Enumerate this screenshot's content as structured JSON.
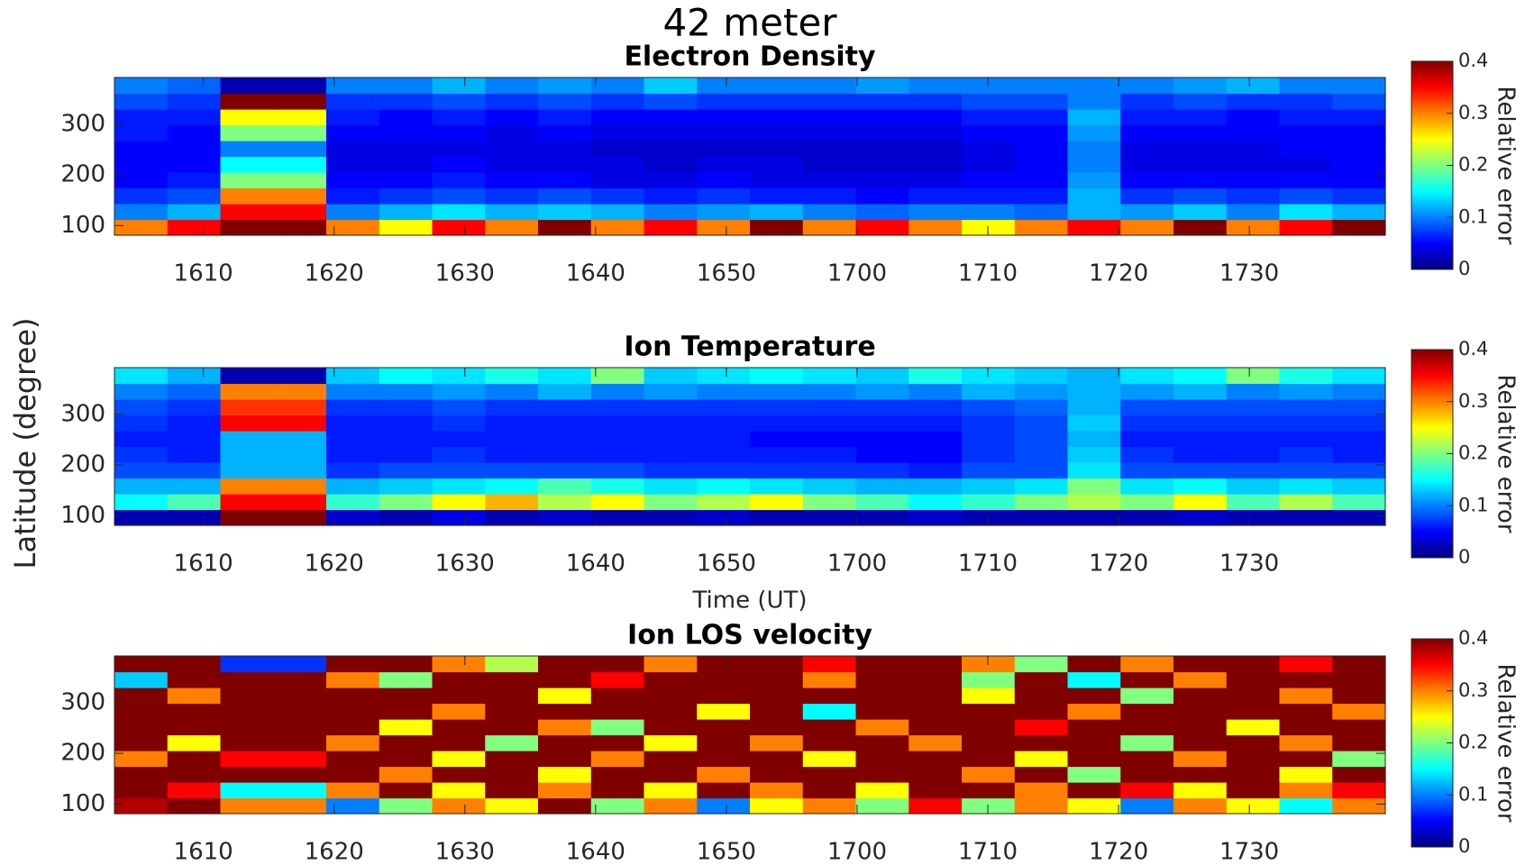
{
  "title": "42 meter",
  "ylabel": "Latitude (degree)",
  "chart_data": [
    {
      "type": "heatmap",
      "title": "Electron Density",
      "colormap": "jet",
      "xlim": [
        963.2,
        1060.4
      ],
      "xticks": [
        {
          "value": 970,
          "label": "1610"
        },
        {
          "value": 980,
          "label": "1620"
        },
        {
          "value": 990,
          "label": "1630"
        },
        {
          "value": 1000,
          "label": "1640"
        },
        {
          "value": 1010,
          "label": "1650"
        },
        {
          "value": 1020,
          "label": "1700"
        },
        {
          "value": 1030,
          "label": "1710"
        },
        {
          "value": 1040,
          "label": "1720"
        },
        {
          "value": 1050,
          "label": "1730"
        }
      ],
      "ylim": [
        81,
        392
      ],
      "yticks": [
        100,
        200,
        300
      ],
      "clim": [
        0,
        0.4
      ],
      "cticks": [
        0,
        0.1,
        0.2,
        0.3,
        0.4
      ],
      "colorbar_label": "Relative error",
      "z": [
        [
          0.3,
          0.35,
          0.4,
          0.4,
          0.3,
          0.25,
          0.35,
          0.3,
          0.4,
          0.3,
          0.35,
          0.3,
          0.4,
          0.3,
          0.35,
          0.3,
          0.25,
          0.3,
          0.35,
          0.3,
          0.4,
          0.3,
          0.35,
          0.4
        ],
        [
          0.1,
          0.12,
          0.35,
          0.35,
          0.1,
          0.12,
          0.14,
          0.12,
          0.13,
          0.12,
          0.1,
          0.11,
          0.12,
          0.1,
          0.09,
          0.1,
          0.1,
          0.09,
          0.12,
          0.11,
          0.13,
          0.1,
          0.14,
          0.12
        ],
        [
          0.07,
          0.08,
          0.3,
          0.3,
          0.06,
          0.07,
          0.08,
          0.07,
          0.08,
          0.07,
          0.06,
          0.07,
          0.06,
          0.06,
          0.05,
          0.06,
          0.06,
          0.06,
          0.12,
          0.07,
          0.08,
          0.07,
          0.08,
          0.07
        ],
        [
          0.05,
          0.06,
          0.2,
          0.2,
          0.05,
          0.05,
          0.06,
          0.05,
          0.05,
          0.04,
          0.04,
          0.05,
          0.04,
          0.04,
          0.04,
          0.04,
          0.05,
          0.05,
          0.11,
          0.05,
          0.05,
          0.05,
          0.05,
          0.05
        ],
        [
          0.05,
          0.05,
          0.15,
          0.15,
          0.04,
          0.04,
          0.05,
          0.04,
          0.04,
          0.04,
          0.03,
          0.04,
          0.04,
          0.03,
          0.03,
          0.03,
          0.04,
          0.05,
          0.1,
          0.04,
          0.04,
          0.04,
          0.04,
          0.05
        ],
        [
          0.05,
          0.05,
          0.1,
          0.1,
          0.04,
          0.04,
          0.04,
          0.04,
          0.04,
          0.03,
          0.03,
          0.03,
          0.03,
          0.03,
          0.03,
          0.03,
          0.04,
          0.05,
          0.1,
          0.04,
          0.04,
          0.04,
          0.05,
          0.05
        ],
        [
          0.06,
          0.05,
          0.2,
          0.2,
          0.05,
          0.05,
          0.05,
          0.04,
          0.05,
          0.04,
          0.04,
          0.04,
          0.04,
          0.04,
          0.04,
          0.04,
          0.05,
          0.05,
          0.11,
          0.05,
          0.05,
          0.05,
          0.05,
          0.05
        ],
        [
          0.06,
          0.06,
          0.25,
          0.25,
          0.06,
          0.05,
          0.06,
          0.05,
          0.06,
          0.05,
          0.05,
          0.05,
          0.05,
          0.05,
          0.05,
          0.05,
          0.06,
          0.06,
          0.12,
          0.06,
          0.06,
          0.05,
          0.06,
          0.06
        ],
        [
          0.08,
          0.07,
          0.4,
          0.4,
          0.07,
          0.07,
          0.08,
          0.07,
          0.08,
          0.07,
          0.08,
          0.07,
          0.07,
          0.07,
          0.07,
          0.07,
          0.08,
          0.08,
          0.1,
          0.07,
          0.08,
          0.07,
          0.07,
          0.08
        ],
        [
          0.1,
          0.09,
          0.02,
          0.02,
          0.1,
          0.1,
          0.12,
          0.1,
          0.11,
          0.1,
          0.13,
          0.1,
          0.1,
          0.1,
          0.11,
          0.1,
          0.1,
          0.1,
          0.1,
          0.1,
          0.11,
          0.12,
          0.1,
          0.1
        ]
      ]
    },
    {
      "type": "heatmap",
      "title": "Ion Temperature",
      "xlabel": "Time (UT)",
      "colormap": "jet",
      "xlim": [
        963.2,
        1060.4
      ],
      "xticks": [
        {
          "value": 970,
          "label": "1610"
        },
        {
          "value": 980,
          "label": "1620"
        },
        {
          "value": 990,
          "label": "1630"
        },
        {
          "value": 1000,
          "label": "1640"
        },
        {
          "value": 1010,
          "label": "1650"
        },
        {
          "value": 1020,
          "label": "1700"
        },
        {
          "value": 1030,
          "label": "1710"
        },
        {
          "value": 1040,
          "label": "1720"
        },
        {
          "value": 1050,
          "label": "1730"
        }
      ],
      "ylim": [
        81,
        392
      ],
      "yticks": [
        100,
        200,
        300
      ],
      "clim": [
        0,
        0.4
      ],
      "cticks": [
        0,
        0.1,
        0.2,
        0.3,
        0.4
      ],
      "colorbar_label": "Relative error",
      "z": [
        [
          0.02,
          0.02,
          0.4,
          0.4,
          0.03,
          0.02,
          0.04,
          0.02,
          0.03,
          0.02,
          0.02,
          0.03,
          0.02,
          0.02,
          0.02,
          0.03,
          0.02,
          0.02,
          0.02,
          0.02,
          0.03,
          0.02,
          0.02,
          0.02
        ],
        [
          0.15,
          0.18,
          0.35,
          0.35,
          0.17,
          0.2,
          0.25,
          0.28,
          0.22,
          0.25,
          0.2,
          0.22,
          0.25,
          0.2,
          0.18,
          0.15,
          0.17,
          0.2,
          0.22,
          0.2,
          0.25,
          0.18,
          0.22,
          0.18
        ],
        [
          0.12,
          0.12,
          0.3,
          0.3,
          0.12,
          0.13,
          0.14,
          0.15,
          0.18,
          0.16,
          0.14,
          0.15,
          0.14,
          0.13,
          0.12,
          0.12,
          0.13,
          0.14,
          0.2,
          0.14,
          0.15,
          0.13,
          0.14,
          0.13
        ],
        [
          0.08,
          0.08,
          0.12,
          0.12,
          0.07,
          0.08,
          0.08,
          0.08,
          0.08,
          0.08,
          0.07,
          0.07,
          0.07,
          0.07,
          0.07,
          0.06,
          0.08,
          0.08,
          0.14,
          0.08,
          0.08,
          0.08,
          0.08,
          0.08
        ],
        [
          0.07,
          0.06,
          0.12,
          0.12,
          0.06,
          0.06,
          0.07,
          0.06,
          0.06,
          0.06,
          0.06,
          0.06,
          0.06,
          0.06,
          0.05,
          0.05,
          0.07,
          0.08,
          0.13,
          0.07,
          0.06,
          0.06,
          0.07,
          0.06
        ],
        [
          0.06,
          0.06,
          0.12,
          0.12,
          0.06,
          0.06,
          0.06,
          0.06,
          0.06,
          0.06,
          0.06,
          0.06,
          0.05,
          0.05,
          0.05,
          0.05,
          0.07,
          0.08,
          0.12,
          0.06,
          0.06,
          0.06,
          0.06,
          0.06
        ],
        [
          0.07,
          0.06,
          0.35,
          0.35,
          0.06,
          0.06,
          0.07,
          0.06,
          0.06,
          0.06,
          0.06,
          0.06,
          0.06,
          0.06,
          0.06,
          0.06,
          0.07,
          0.08,
          0.13,
          0.07,
          0.07,
          0.07,
          0.07,
          0.07
        ],
        [
          0.08,
          0.07,
          0.33,
          0.33,
          0.07,
          0.07,
          0.08,
          0.07,
          0.07,
          0.07,
          0.07,
          0.07,
          0.07,
          0.07,
          0.07,
          0.07,
          0.08,
          0.09,
          0.12,
          0.08,
          0.08,
          0.08,
          0.08,
          0.08
        ],
        [
          0.1,
          0.09,
          0.3,
          0.3,
          0.1,
          0.1,
          0.11,
          0.1,
          0.12,
          0.1,
          0.11,
          0.1,
          0.1,
          0.1,
          0.11,
          0.1,
          0.12,
          0.11,
          0.12,
          0.11,
          0.12,
          0.1,
          0.11,
          0.1
        ],
        [
          0.14,
          0.12,
          0.02,
          0.02,
          0.13,
          0.15,
          0.14,
          0.16,
          0.14,
          0.2,
          0.13,
          0.14,
          0.15,
          0.14,
          0.13,
          0.16,
          0.14,
          0.13,
          0.12,
          0.14,
          0.15,
          0.2,
          0.16,
          0.14
        ]
      ]
    },
    {
      "type": "heatmap",
      "title": "Ion LOS velocity",
      "colormap": "jet",
      "xlim": [
        963.2,
        1060.4
      ],
      "xticks": [
        {
          "value": 970,
          "label": "1610"
        },
        {
          "value": 980,
          "label": "1620"
        },
        {
          "value": 990,
          "label": "1630"
        },
        {
          "value": 1000,
          "label": "1640"
        },
        {
          "value": 1010,
          "label": "1650"
        },
        {
          "value": 1020,
          "label": "1700"
        },
        {
          "value": 1030,
          "label": "1710"
        },
        {
          "value": 1040,
          "label": "1720"
        },
        {
          "value": 1050,
          "label": "1730"
        }
      ],
      "ylim": [
        81,
        392
      ],
      "yticks": [
        100,
        200,
        300
      ],
      "clim": [
        0,
        0.4
      ],
      "cticks": [
        0,
        0.1,
        0.2,
        0.3,
        0.4
      ],
      "colorbar_label": "Relative error",
      "z": [
        [
          0.38,
          0.4,
          0.3,
          0.3,
          0.1,
          0.2,
          0.3,
          0.25,
          0.4,
          0.2,
          0.3,
          0.1,
          0.25,
          0.3,
          0.2,
          0.35,
          0.2,
          0.3,
          0.25,
          0.1,
          0.3,
          0.25,
          0.15,
          0.3
        ],
        [
          0.4,
          0.35,
          0.15,
          0.15,
          0.3,
          0.4,
          0.25,
          0.4,
          0.3,
          0.4,
          0.25,
          0.4,
          0.3,
          0.4,
          0.25,
          0.4,
          0.4,
          0.3,
          0.4,
          0.35,
          0.25,
          0.4,
          0.3,
          0.35
        ],
        [
          0.4,
          0.4,
          0.4,
          0.4,
          0.4,
          0.3,
          0.4,
          0.4,
          0.25,
          0.4,
          0.4,
          0.3,
          0.4,
          0.4,
          0.4,
          0.4,
          0.3,
          0.4,
          0.2,
          0.4,
          0.4,
          0.4,
          0.25,
          0.4
        ],
        [
          0.3,
          0.4,
          0.35,
          0.35,
          0.4,
          0.4,
          0.25,
          0.4,
          0.4,
          0.3,
          0.4,
          0.4,
          0.4,
          0.25,
          0.4,
          0.4,
          0.4,
          0.25,
          0.4,
          0.4,
          0.3,
          0.4,
          0.4,
          0.2
        ],
        [
          0.4,
          0.25,
          0.4,
          0.4,
          0.3,
          0.4,
          0.4,
          0.2,
          0.4,
          0.4,
          0.25,
          0.4,
          0.3,
          0.4,
          0.4,
          0.3,
          0.4,
          0.4,
          0.4,
          0.2,
          0.4,
          0.4,
          0.3,
          0.4
        ],
        [
          0.4,
          0.4,
          0.4,
          0.4,
          0.4,
          0.25,
          0.4,
          0.4,
          0.3,
          0.2,
          0.4,
          0.4,
          0.4,
          0.4,
          0.3,
          0.4,
          0.4,
          0.35,
          0.4,
          0.4,
          0.4,
          0.25,
          0.4,
          0.4
        ],
        [
          0.4,
          0.4,
          0.4,
          0.4,
          0.4,
          0.4,
          0.3,
          0.4,
          0.4,
          0.4,
          0.4,
          0.25,
          0.4,
          0.15,
          0.4,
          0.4,
          0.4,
          0.4,
          0.3,
          0.4,
          0.4,
          0.4,
          0.4,
          0.3
        ],
        [
          0.4,
          0.3,
          0.4,
          0.4,
          0.4,
          0.4,
          0.4,
          0.4,
          0.25,
          0.4,
          0.4,
          0.4,
          0.4,
          0.4,
          0.4,
          0.4,
          0.25,
          0.4,
          0.4,
          0.2,
          0.4,
          0.4,
          0.3,
          0.4
        ],
        [
          0.13,
          0.4,
          0.4,
          0.4,
          0.3,
          0.2,
          0.4,
          0.4,
          0.4,
          0.35,
          0.4,
          0.4,
          0.4,
          0.3,
          0.4,
          0.4,
          0.2,
          0.4,
          0.15,
          0.4,
          0.3,
          0.4,
          0.4,
          0.4
        ],
        [
          0.4,
          0.4,
          0.07,
          0.07,
          0.4,
          0.4,
          0.3,
          0.22,
          0.4,
          0.4,
          0.3,
          0.4,
          0.4,
          0.35,
          0.4,
          0.4,
          0.3,
          0.2,
          0.4,
          0.3,
          0.4,
          0.4,
          0.35,
          0.4
        ]
      ]
    }
  ]
}
